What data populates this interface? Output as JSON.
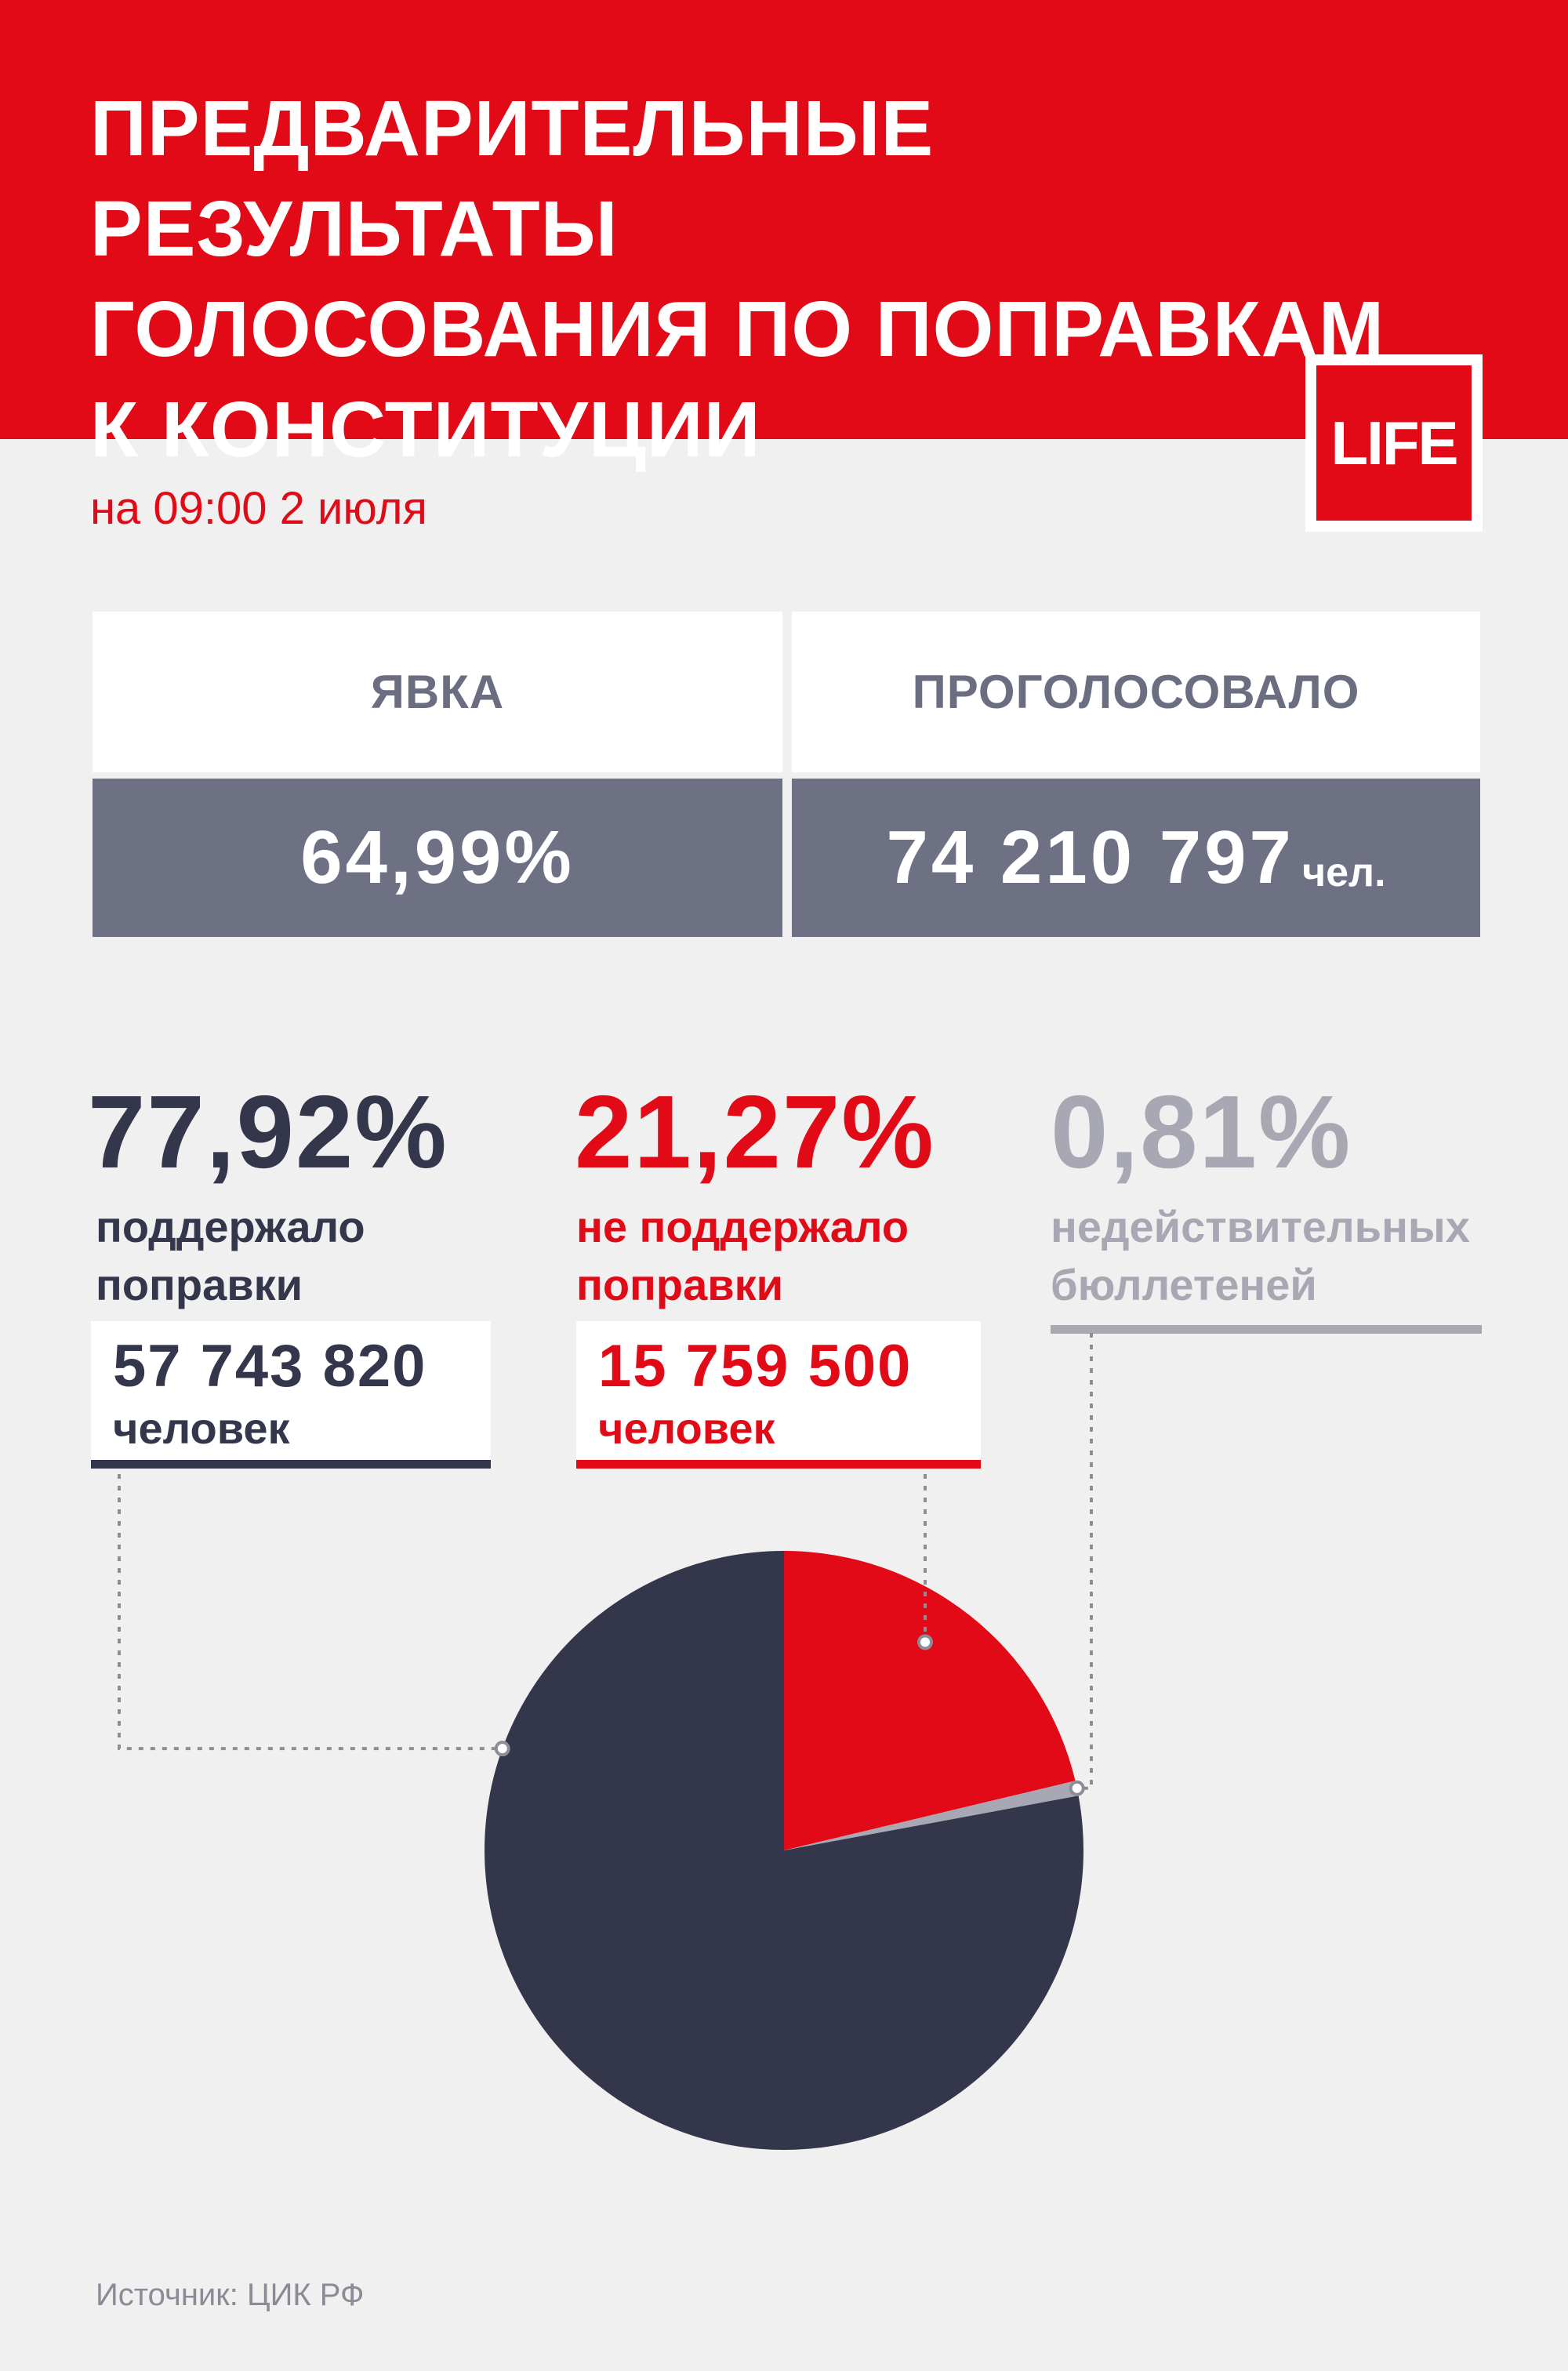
{
  "header": {
    "title": "ПРЕДВАРИТЕЛЬНЫЕ РЕЗУЛЬТАТЫ\nГОЛОСОВАНИЯ ПО ПОПРАВКАМ\nК КОНСТИТУЦИИ",
    "logo": "LIFE",
    "date": "на 09:00 2 июля"
  },
  "stats": {
    "turnout_label": "ЯВКА",
    "turnout_value": "64,99%",
    "voted_label": "ПРОГОЛОСОВАЛО",
    "voted_value": "74 210 797",
    "voted_unit": "чел."
  },
  "results": {
    "support": {
      "pct": "77,92%",
      "desc": "поддержало\nпоправки",
      "count": "57 743 820",
      "unit": "человек"
    },
    "against": {
      "pct": "21,27%",
      "desc": "не поддержало\nпоправки",
      "count": "15 759 500",
      "unit": "человек"
    },
    "invalid": {
      "pct": "0,81%",
      "desc": "недействительных\nбюллетеней"
    }
  },
  "colors": {
    "red": "#e20a16",
    "navy": "#34364b",
    "gray": "#a7a8b3",
    "slate": "#6e7083"
  },
  "chart_data": {
    "type": "pie",
    "title": "",
    "categories": [
      "поддержало поправки",
      "не поддержало поправки",
      "недействительных бюллетеней"
    ],
    "values": [
      77.92,
      21.27,
      0.81
    ],
    "slice_order_clockwise_from_top": [
      "не поддержало поправки",
      "недействительных бюллетеней",
      "поддержало поправки"
    ]
  },
  "footer": {
    "source": "Источник: ЦИК РФ"
  }
}
